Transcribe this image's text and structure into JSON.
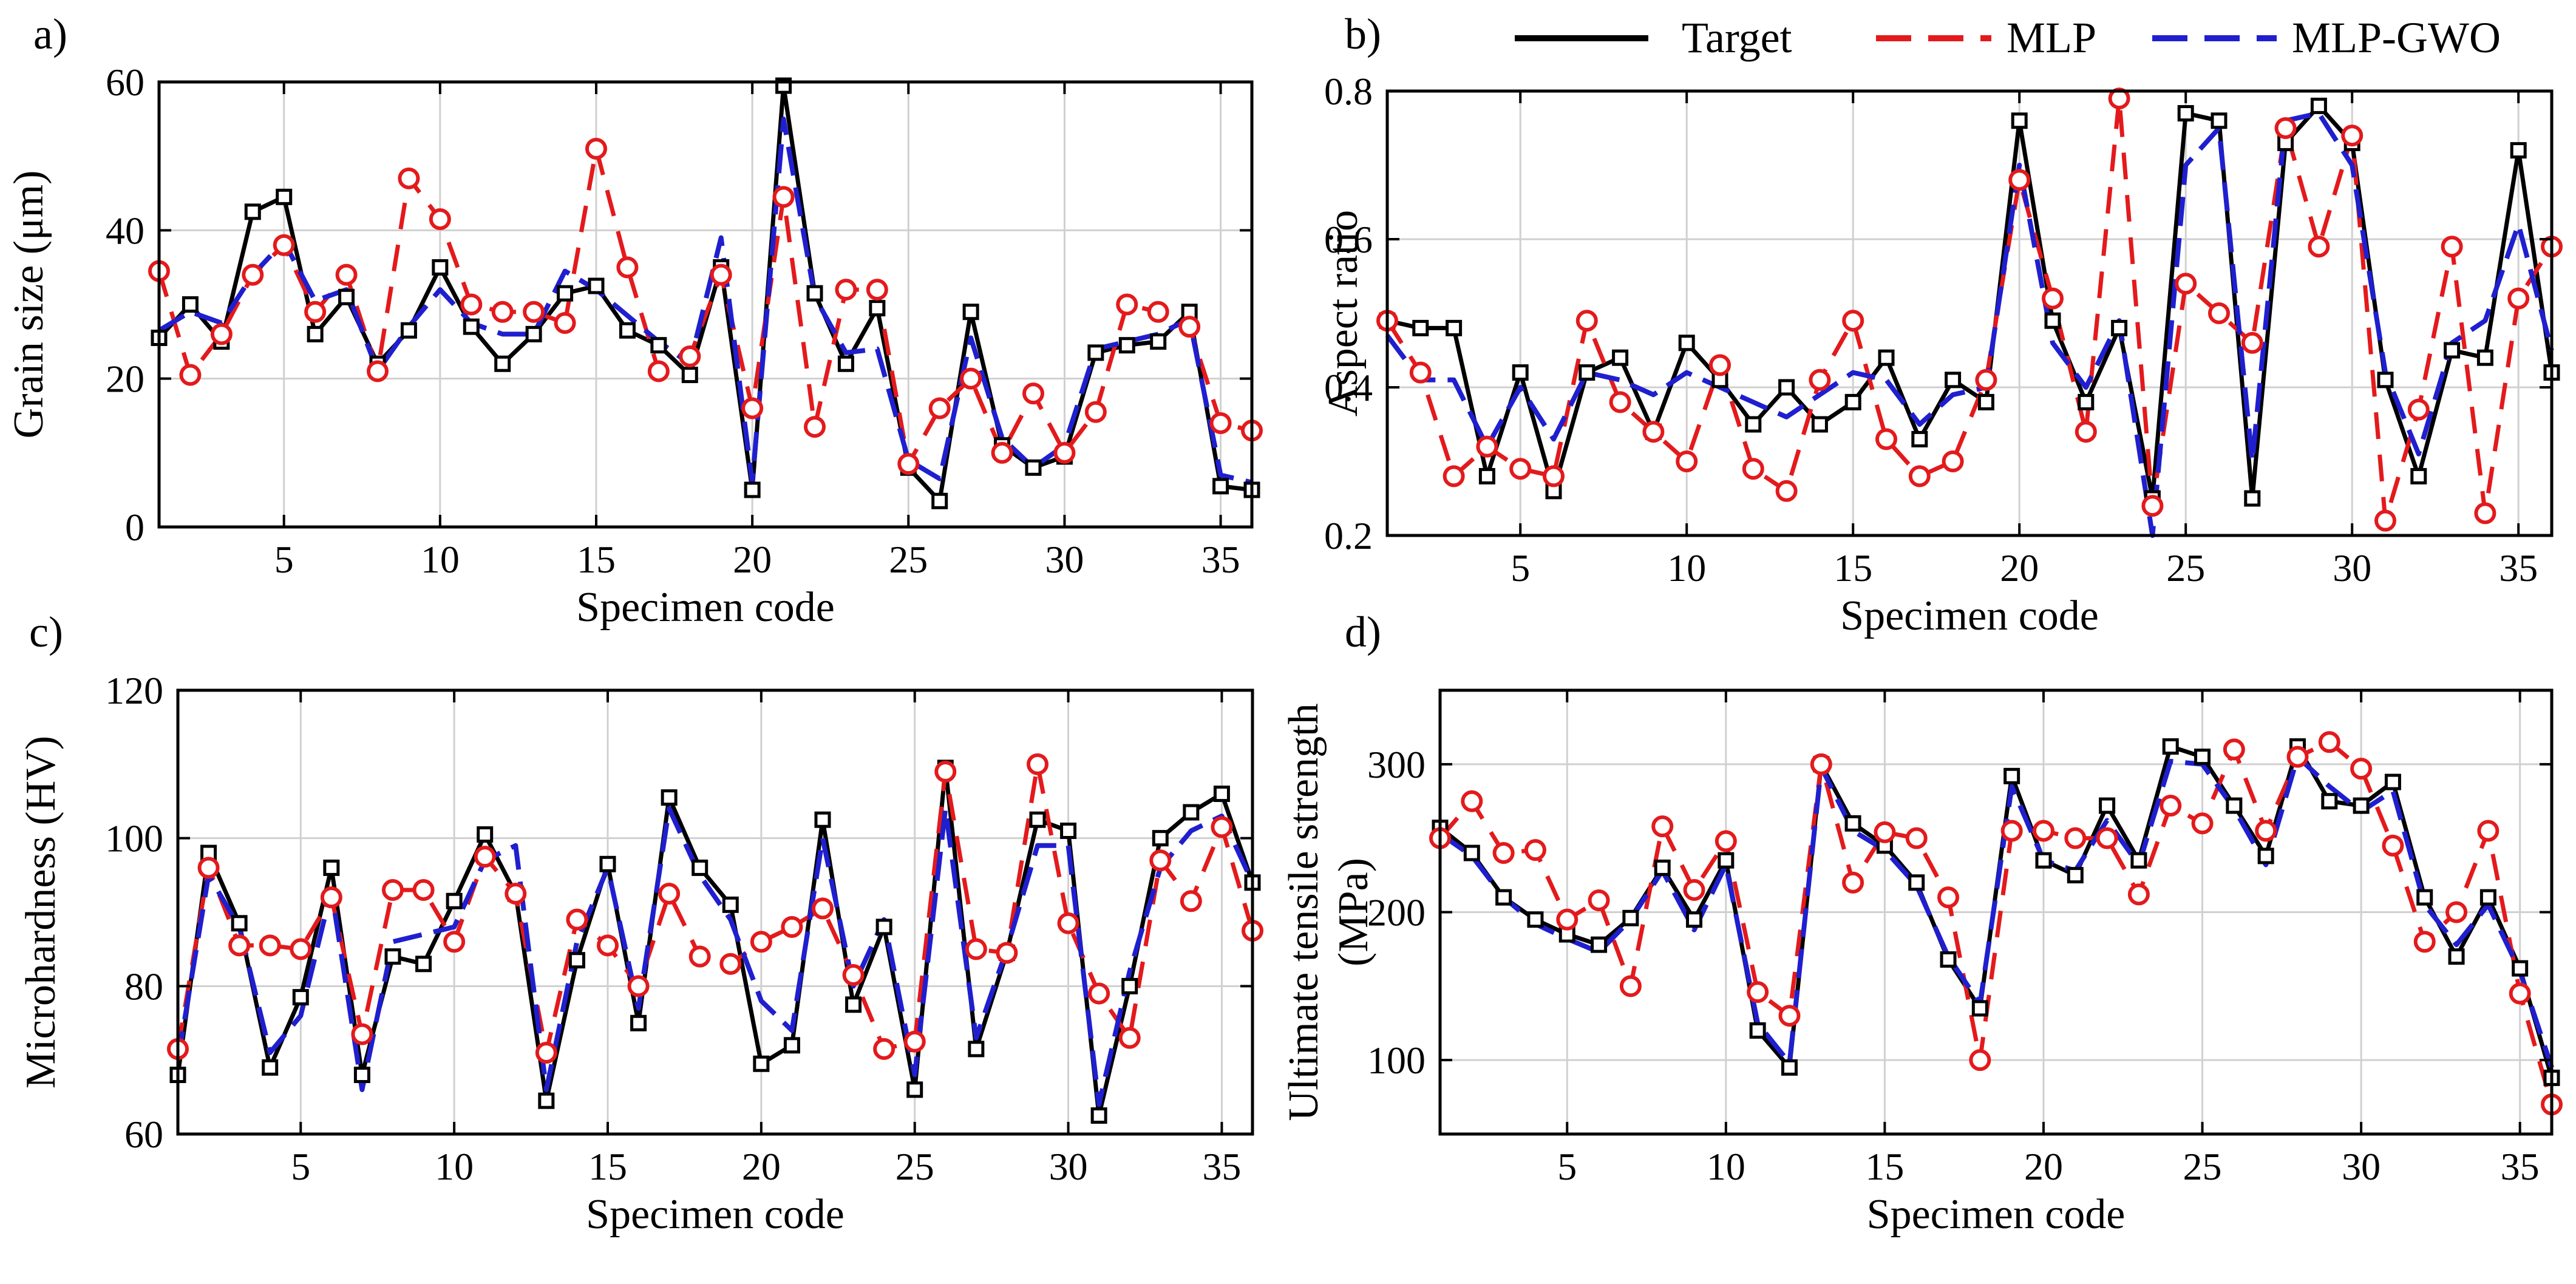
{
  "legend": {
    "placement": "top-right",
    "entries": [
      {
        "label": "Target",
        "color": "#000000",
        "style": "solid"
      },
      {
        "label": "MLP",
        "color": "#e31a1c",
        "style": "dashed"
      },
      {
        "label": "MLP-GWO",
        "color": "#1f1fcf",
        "style": "dashed"
      }
    ]
  },
  "chart_data": [
    {
      "id": "a",
      "panel_label": "a)",
      "type": "line",
      "xlabel": "Specimen code",
      "ylabel": "Grain size (μm)",
      "xlim": [
        1,
        36
      ],
      "ylim": [
        0,
        60
      ],
      "xticks": [
        5,
        10,
        15,
        20,
        25,
        30,
        35
      ],
      "yticks": [
        0,
        20,
        40,
        60
      ],
      "grid": true,
      "x": [
        1,
        2,
        3,
        4,
        5,
        6,
        7,
        8,
        9,
        10,
        11,
        12,
        13,
        14,
        15,
        16,
        17,
        18,
        19,
        20,
        21,
        22,
        23,
        24,
        25,
        26,
        27,
        28,
        29,
        30,
        31,
        32,
        33,
        34,
        35,
        36
      ],
      "series": [
        {
          "name": "Target",
          "values": [
            25.5,
            30,
            25,
            42.5,
            44.5,
            26,
            31,
            22,
            26.5,
            35,
            27,
            22,
            26,
            31.5,
            32.5,
            26.5,
            24.5,
            20.5,
            35,
            5,
            59.5,
            31.5,
            22,
            29.5,
            8,
            3.5,
            29,
            11,
            8,
            9.5,
            23.5,
            24.5,
            25,
            29,
            5.5,
            5
          ]
        },
        {
          "name": "MLP",
          "values": [
            34.5,
            20.5,
            26,
            34,
            38,
            29,
            34,
            21,
            47,
            41.5,
            30,
            29,
            29,
            27.5,
            51,
            35,
            21,
            23,
            34,
            16,
            44.5,
            13.5,
            32,
            32,
            8.5,
            16,
            20,
            10,
            18,
            10,
            15.5,
            30,
            29,
            27,
            14,
            13
          ]
        },
        {
          "name": "MLP-GWO",
          "values": [
            26.5,
            29,
            27.5,
            34,
            38.5,
            30.5,
            32,
            21,
            27,
            32,
            27.5,
            26,
            26,
            34.5,
            32,
            28.5,
            25,
            22,
            39,
            6,
            55,
            31,
            23.5,
            24,
            9,
            6.5,
            25.5,
            12,
            8,
            11,
            24,
            25,
            26,
            28,
            7,
            6
          ]
        }
      ]
    },
    {
      "id": "b",
      "panel_label": "b)",
      "type": "line",
      "xlabel": "Specimen code",
      "ylabel": "Aspect ratio",
      "xlim": [
        1,
        36
      ],
      "ylim": [
        0.2,
        0.8
      ],
      "xticks": [
        5,
        10,
        15,
        20,
        25,
        30,
        35
      ],
      "yticks": [
        0.2,
        0.4,
        0.6,
        0.8
      ],
      "ytick_labels": [
        "0.2",
        "0.4",
        "0.6",
        "0.8"
      ],
      "grid": true,
      "x": [
        1,
        2,
        3,
        4,
        5,
        6,
        7,
        8,
        9,
        10,
        11,
        12,
        13,
        14,
        15,
        16,
        17,
        18,
        19,
        20,
        21,
        22,
        23,
        24,
        25,
        26,
        27,
        28,
        29,
        30,
        31,
        32,
        33,
        34,
        35,
        36
      ],
      "series": [
        {
          "name": "Target",
          "values": [
            0.49,
            0.48,
            0.48,
            0.28,
            0.42,
            0.26,
            0.42,
            0.44,
            0.34,
            0.46,
            0.41,
            0.35,
            0.4,
            0.35,
            0.38,
            0.44,
            0.33,
            0.41,
            0.38,
            0.76,
            0.49,
            0.38,
            0.48,
            0.25,
            0.77,
            0.76,
            0.25,
            0.73,
            0.78,
            0.73,
            0.41,
            0.28,
            0.45,
            0.44,
            0.72,
            0.42
          ]
        },
        {
          "name": "MLP",
          "values": [
            0.49,
            0.42,
            0.28,
            0.32,
            0.29,
            0.28,
            0.49,
            0.38,
            0.34,
            0.3,
            0.43,
            0.29,
            0.26,
            0.41,
            0.49,
            0.33,
            0.28,
            0.3,
            0.41,
            0.68,
            0.52,
            0.34,
            0.79,
            0.24,
            0.54,
            0.5,
            0.46,
            0.75,
            0.59,
            0.74,
            0.22,
            0.37,
            0.59,
            0.23,
            0.52,
            0.59
          ]
        },
        {
          "name": "MLP-GWO",
          "values": [
            0.47,
            0.41,
            0.41,
            0.32,
            0.4,
            0.33,
            0.42,
            0.41,
            0.39,
            0.42,
            0.4,
            0.38,
            0.36,
            0.39,
            0.42,
            0.41,
            0.35,
            0.39,
            0.4,
            0.7,
            0.46,
            0.4,
            0.49,
            0.2,
            0.7,
            0.75,
            0.3,
            0.76,
            0.77,
            0.7,
            0.42,
            0.31,
            0.46,
            0.49,
            0.62,
            0.45
          ]
        }
      ]
    },
    {
      "id": "c",
      "panel_label": "c)",
      "type": "line",
      "xlabel": "Specimen code",
      "ylabel": "Microhardness (HV)",
      "xlim": [
        1,
        36
      ],
      "ylim": [
        60,
        120
      ],
      "xticks": [
        5,
        10,
        15,
        20,
        25,
        30,
        35
      ],
      "yticks": [
        60,
        80,
        100,
        120
      ],
      "grid": true,
      "x": [
        1,
        2,
        3,
        4,
        5,
        6,
        7,
        8,
        9,
        10,
        11,
        12,
        13,
        14,
        15,
        16,
        17,
        18,
        19,
        20,
        21,
        22,
        23,
        24,
        25,
        26,
        27,
        28,
        29,
        30,
        31,
        32,
        33,
        34,
        35,
        36
      ],
      "series": [
        {
          "name": "Target",
          "values": [
            68,
            98,
            88.5,
            69,
            78.5,
            96,
            68,
            84,
            83,
            91.5,
            100.5,
            92.5,
            64.5,
            83.5,
            96.5,
            75,
            105.5,
            96,
            91,
            69.5,
            72,
            102.5,
            77.5,
            88,
            66,
            109.5,
            71.5,
            84.5,
            102.5,
            101,
            62.5,
            80,
            100,
            103.5,
            106,
            94
          ]
        },
        {
          "name": "MLP",
          "values": [
            71.5,
            96,
            85.5,
            85.5,
            85,
            92,
            73.5,
            93,
            93,
            86,
            97.5,
            92.5,
            71,
            89,
            85.5,
            80,
            92.5,
            84,
            83,
            86,
            88,
            90.5,
            81.5,
            71.5,
            72.5,
            109,
            85,
            84.5,
            110,
            88.5,
            79,
            73,
            97,
            91.5,
            101.5,
            87.5
          ]
        },
        {
          "name": "MLP-GWO",
          "values": [
            70,
            95,
            88,
            71,
            76,
            93,
            66,
            86,
            87,
            88,
            97,
            99,
            66,
            86,
            96,
            77,
            104,
            95,
            89,
            78,
            74,
            100,
            80,
            89,
            68,
            104,
            73,
            85,
            99,
            99,
            64,
            82,
            96,
            101,
            103,
            94
          ]
        }
      ]
    },
    {
      "id": "d",
      "panel_label": "d)",
      "type": "line",
      "xlabel": "Specimen code",
      "ylabel": "Ultimate tensile strength (MPa)",
      "ylabel_lines": [
        "Ultimate tensile strength",
        "(MPa)"
      ],
      "xlim": [
        1,
        36
      ],
      "ylim": [
        50,
        350
      ],
      "xticks": [
        5,
        10,
        15,
        20,
        25,
        30,
        35
      ],
      "yticks": [
        100,
        200,
        300
      ],
      "grid": true,
      "x": [
        1,
        2,
        3,
        4,
        5,
        6,
        7,
        8,
        9,
        10,
        11,
        12,
        13,
        14,
        15,
        16,
        17,
        18,
        19,
        20,
        21,
        22,
        23,
        24,
        25,
        26,
        27,
        28,
        29,
        30,
        31,
        32,
        33,
        34,
        35,
        36
      ],
      "series": [
        {
          "name": "Target",
          "values": [
            257,
            240,
            210,
            195,
            185,
            178,
            196,
            230,
            195,
            235,
            120,
            95,
            300,
            260,
            245,
            220,
            168,
            135,
            292,
            235,
            225,
            272,
            235,
            312,
            305,
            272,
            238,
            312,
            275,
            272,
            288,
            210,
            170,
            210,
            162,
            88
          ]
        },
        {
          "name": "MLP",
          "values": [
            250,
            275,
            240,
            242,
            195,
            208,
            150,
            258,
            215,
            248,
            146,
            130,
            300,
            220,
            254,
            250,
            210,
            100,
            255,
            255,
            250,
            250,
            212,
            272,
            260,
            310,
            255,
            305,
            315,
            297,
            245,
            180,
            200,
            255,
            145,
            70
          ]
        },
        {
          "name": "MLP-GWO",
          "values": [
            253,
            238,
            210,
            192,
            182,
            173,
            195,
            228,
            188,
            232,
            125,
            98,
            298,
            255,
            242,
            218,
            170,
            138,
            285,
            235,
            228,
            262,
            232,
            302,
            300,
            270,
            232,
            305,
            285,
            268,
            282,
            205,
            178,
            205,
            160,
            95
          ]
        }
      ]
    }
  ]
}
